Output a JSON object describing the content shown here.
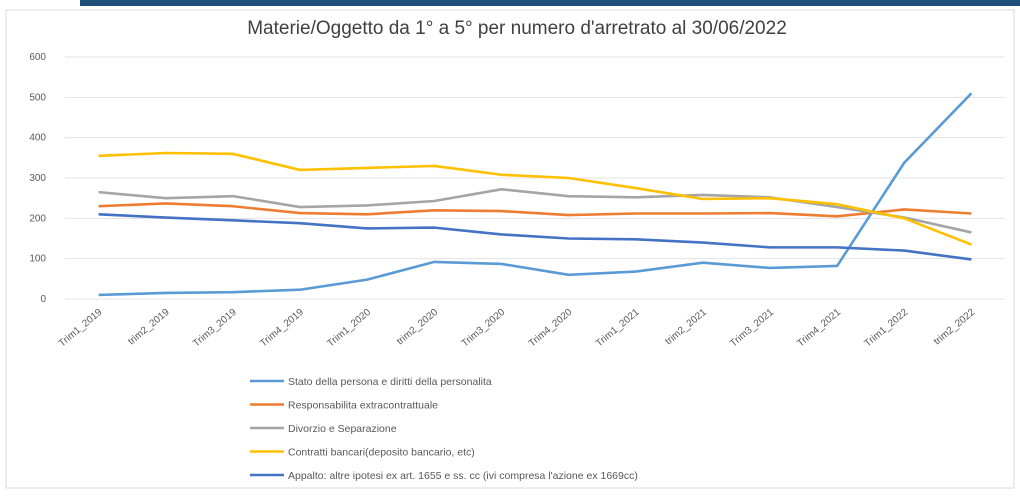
{
  "chart_data": {
    "type": "line",
    "title": "Materie/Oggetto da 1° a 5° per numero d'arretrato al 30/06/2022",
    "categories": [
      "Trim1_2019",
      "trim2_2019",
      "Trim3_2019",
      "Trim4_2019",
      "Trim1_2020",
      "trim2_2020",
      "Trim3_2020",
      "Trim4_2020",
      "Trim1_2021",
      "trim2_2021",
      "Trim3_2021",
      "Trim4_2021",
      "Trim1_2022",
      "trim2_2022"
    ],
    "series": [
      {
        "name": "Stato della persona e diritti della personalita",
        "color": "#5b9bd5",
        "values": [
          10,
          15,
          17,
          23,
          48,
          92,
          87,
          60,
          68,
          90,
          77,
          82,
          338,
          510
        ]
      },
      {
        "name": "Responsabilita extracontrattuale",
        "color": "#ed7d31",
        "values": [
          230,
          237,
          230,
          213,
          210,
          220,
          218,
          208,
          212,
          212,
          213,
          205,
          222,
          212
        ]
      },
      {
        "name": "Divorzio e Separazione",
        "color": "#a5a5a5",
        "values": [
          265,
          250,
          255,
          228,
          232,
          243,
          272,
          255,
          252,
          258,
          252,
          228,
          202,
          165
        ]
      },
      {
        "name": "Contratti bancari(deposito bancario, etc)",
        "color": "#ffc000",
        "values": [
          355,
          362,
          360,
          320,
          325,
          330,
          308,
          300,
          275,
          248,
          250,
          235,
          200,
          135
        ]
      },
      {
        "name": "Appalto: altre ipotesi ex art. 1655 e ss. cc (ivi compresa l'azione ex 1669cc)",
        "color": "#4472c4",
        "values": [
          210,
          202,
          195,
          188,
          175,
          177,
          160,
          150,
          148,
          140,
          128,
          128,
          120,
          98
        ]
      }
    ],
    "ylim": [
      0,
      600
    ],
    "yticks": [
      0,
      100,
      200,
      300,
      400,
      500,
      600
    ],
    "grid": true,
    "legend": "bottom"
  }
}
